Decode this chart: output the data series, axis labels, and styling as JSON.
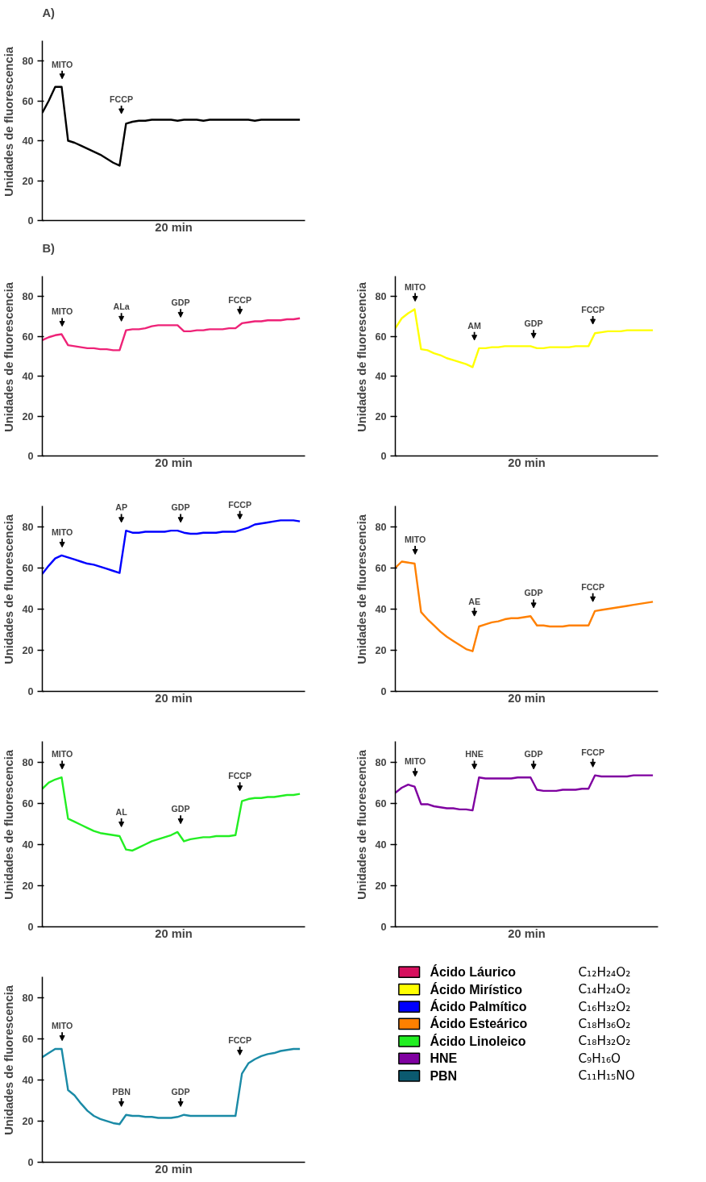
{
  "chart_data": [
    {
      "type": "line",
      "title": "A)",
      "ylabel": "Unidades de fluorescencia",
      "xlabel": "20 min",
      "ylim": [
        0,
        90
      ],
      "yticks": [
        0,
        20,
        40,
        60,
        80
      ],
      "grid": false,
      "categories": [
        null,
        null,
        null,
        null,
        null,
        null,
        null,
        null,
        null,
        null,
        null,
        null,
        null,
        null,
        null,
        null,
        null,
        null,
        null,
        null,
        null,
        null,
        null,
        null,
        null,
        null,
        null,
        null,
        null,
        null,
        null,
        null,
        null,
        null,
        null,
        null,
        null,
        null,
        null,
        null,
        null
      ],
      "series": [
        {
          "color": "#000000",
          "values": [
            54,
            60,
            67,
            67,
            40,
            39,
            37.5,
            36,
            34.5,
            33,
            31,
            29,
            27.5,
            48.5,
            49.5,
            50,
            50,
            50.5,
            50.5,
            50.5,
            50.5,
            50,
            50.5,
            50.5,
            50.5,
            50,
            50.5,
            50.5,
            50.5,
            50.5,
            50.5,
            50.5,
            50.5,
            50,
            50.5,
            50.5,
            50.5,
            50.5,
            50.5,
            50.5,
            50.5
          ]
        }
      ],
      "annotations": [
        "MITO",
        "FCCP"
      ]
    },
    {
      "type": "line",
      "title": "B)",
      "ylabel": "Unidades de fluorescencia",
      "xlabel": "20 min",
      "ylim": [
        0,
        90
      ],
      "yticks": [
        0,
        20,
        40,
        60,
        80
      ],
      "grid": false,
      "categories": [
        null,
        null,
        null,
        null,
        null,
        null,
        null,
        null,
        null,
        null,
        null,
        null,
        null,
        null,
        null,
        null,
        null,
        null,
        null,
        null,
        null,
        null,
        null,
        null,
        null,
        null,
        null,
        null,
        null,
        null,
        null,
        null,
        null,
        null,
        null,
        null,
        null,
        null,
        null,
        null,
        null
      ],
      "series": [
        {
          "color": "#ee2277",
          "values": [
            58,
            59.5,
            60.5,
            61,
            55.5,
            55,
            54.5,
            54,
            54,
            53.5,
            53.5,
            53,
            53,
            63,
            63.5,
            63.5,
            64,
            65,
            65.5,
            65.5,
            65.5,
            65.5,
            62.5,
            62.5,
            63,
            63,
            63.5,
            63.5,
            63.5,
            64,
            64,
            66.5,
            67,
            67.5,
            67.5,
            68,
            68,
            68,
            68.5,
            68.5,
            69
          ]
        }
      ],
      "annotations": [
        "MITO",
        "ALa",
        "GDP",
        "FCCP"
      ]
    },
    {
      "type": "line",
      "ylabel": "Unidades de fluorescencia",
      "xlabel": "20 min",
      "ylim": [
        0,
        90
      ],
      "yticks": [
        0,
        20,
        40,
        60,
        80
      ],
      "grid": false,
      "categories": [
        null,
        null,
        null,
        null,
        null,
        null,
        null,
        null,
        null,
        null,
        null,
        null,
        null,
        null,
        null,
        null,
        null,
        null,
        null,
        null,
        null,
        null,
        null,
        null,
        null,
        null,
        null,
        null,
        null,
        null,
        null,
        null,
        null,
        null,
        null,
        null,
        null,
        null,
        null,
        null,
        null
      ],
      "series": [
        {
          "color": "#ffff00",
          "values": [
            64,
            69,
            71.5,
            73.5,
            53.5,
            53,
            51.5,
            50.5,
            49,
            48,
            47,
            46,
            44.5,
            54,
            54,
            54.5,
            54.5,
            55,
            55,
            55,
            55,
            55,
            54,
            54,
            54.5,
            54.5,
            54.5,
            54.5,
            55,
            55,
            55,
            61.5,
            62,
            62.5,
            62.5,
            62.5,
            63,
            63,
            63,
            63,
            63
          ]
        }
      ],
      "annotations": [
        "MITO",
        "AM",
        "GDP",
        "FCCP"
      ]
    },
    {
      "type": "line",
      "ylabel": "Unidades de fluorescencia",
      "xlabel": "20 min",
      "ylim": [
        0,
        90
      ],
      "yticks": [
        0,
        20,
        40,
        60,
        80
      ],
      "grid": false,
      "categories": [
        null,
        null,
        null,
        null,
        null,
        null,
        null,
        null,
        null,
        null,
        null,
        null,
        null,
        null,
        null,
        null,
        null,
        null,
        null,
        null,
        null,
        null,
        null,
        null,
        null,
        null,
        null,
        null,
        null,
        null,
        null,
        null,
        null,
        null,
        null,
        null,
        null,
        null,
        null,
        null,
        null
      ],
      "series": [
        {
          "color": "#0000ff",
          "values": [
            57,
            61,
            64.5,
            66,
            65,
            64,
            63,
            62,
            61.5,
            60.5,
            59.5,
            58.5,
            57.5,
            78,
            77,
            77,
            77.5,
            77.5,
            77.5,
            77.5,
            78,
            78,
            77,
            76.5,
            76.5,
            77,
            77,
            77,
            77.5,
            77.5,
            77.5,
            78.5,
            79.5,
            81,
            81.5,
            82,
            82.5,
            83,
            83,
            83,
            82.5
          ]
        }
      ],
      "annotations": [
        "MITO",
        "AP",
        "GDP",
        "FCCP"
      ]
    },
    {
      "type": "line",
      "ylabel": "Unidades de fluorescencia",
      "xlabel": "20 min",
      "ylim": [
        0,
        90
      ],
      "yticks": [
        0,
        20,
        40,
        60,
        80
      ],
      "grid": false,
      "categories": [
        null,
        null,
        null,
        null,
        null,
        null,
        null,
        null,
        null,
        null,
        null,
        null,
        null,
        null,
        null,
        null,
        null,
        null,
        null,
        null,
        null,
        null,
        null,
        null,
        null,
        null,
        null,
        null,
        null,
        null,
        null,
        null,
        null,
        null,
        null,
        null,
        null,
        null,
        null,
        null,
        null
      ],
      "series": [
        {
          "color": "#ff8000",
          "values": [
            60,
            63,
            62.5,
            62,
            38.5,
            35,
            32,
            29,
            26.5,
            24.5,
            22.5,
            20.5,
            19.5,
            31.5,
            32.5,
            33.5,
            34,
            35,
            35.5,
            35.5,
            36,
            36.5,
            32,
            32,
            31.5,
            31.5,
            31.5,
            32,
            32,
            32,
            32,
            39,
            39.5,
            40,
            40.5,
            41,
            41.5,
            42,
            42.5,
            43,
            43.5
          ]
        }
      ],
      "annotations": [
        "MITO",
        "AE",
        "GDP",
        "FCCP"
      ]
    },
    {
      "type": "line",
      "ylabel": "Unidades de fluorescencia",
      "xlabel": "20 min",
      "ylim": [
        0,
        90
      ],
      "yticks": [
        0,
        20,
        40,
        60,
        80
      ],
      "grid": false,
      "categories": [
        null,
        null,
        null,
        null,
        null,
        null,
        null,
        null,
        null,
        null,
        null,
        null,
        null,
        null,
        null,
        null,
        null,
        null,
        null,
        null,
        null,
        null,
        null,
        null,
        null,
        null,
        null,
        null,
        null,
        null,
        null,
        null,
        null,
        null,
        null,
        null,
        null,
        null,
        null,
        null,
        null
      ],
      "series": [
        {
          "color": "#22ee22",
          "values": [
            67,
            70,
            71.5,
            72.5,
            52.5,
            51,
            49.5,
            48,
            46.5,
            45.5,
            45,
            44.5,
            44,
            37.5,
            37,
            38.5,
            40,
            41.5,
            42.5,
            43.5,
            44.5,
            46,
            41.5,
            42.5,
            43,
            43.5,
            43.5,
            44,
            44,
            44,
            44.5,
            61,
            62,
            62.5,
            62.5,
            63,
            63,
            63.5,
            64,
            64,
            64.5
          ]
        }
      ],
      "annotations": [
        "MITO",
        "AL",
        "GDP",
        "FCCP"
      ]
    },
    {
      "type": "line",
      "ylabel": "Unidades de fluorescencia",
      "xlabel": "20 min",
      "ylim": [
        0,
        90
      ],
      "yticks": [
        0,
        20,
        40,
        60,
        80
      ],
      "grid": false,
      "categories": [
        null,
        null,
        null,
        null,
        null,
        null,
        null,
        null,
        null,
        null,
        null,
        null,
        null,
        null,
        null,
        null,
        null,
        null,
        null,
        null,
        null,
        null,
        null,
        null,
        null,
        null,
        null,
        null,
        null,
        null,
        null,
        null,
        null,
        null,
        null,
        null,
        null,
        null,
        null,
        null,
        null
      ],
      "series": [
        {
          "color": "#7f00a0",
          "values": [
            65,
            67.5,
            69,
            68,
            59.5,
            59.5,
            58.5,
            58,
            57.5,
            57.5,
            57,
            57,
            56.5,
            72.5,
            72,
            72,
            72,
            72,
            72,
            72.5,
            72.5,
            72.5,
            66.5,
            66,
            66,
            66,
            66.5,
            66.5,
            66.5,
            67,
            67,
            73.5,
            73,
            73,
            73,
            73,
            73,
            73.5,
            73.5,
            73.5,
            73.5
          ]
        }
      ],
      "annotations": [
        "MITO",
        "HNE",
        "GDP",
        "FCCP"
      ]
    },
    {
      "type": "line",
      "ylabel": "Unidades de fluorescencia",
      "xlabel": "20 min",
      "ylim": [
        0,
        90
      ],
      "yticks": [
        0,
        20,
        40,
        60,
        80
      ],
      "grid": false,
      "categories": [
        null,
        null,
        null,
        null,
        null,
        null,
        null,
        null,
        null,
        null,
        null,
        null,
        null,
        null,
        null,
        null,
        null,
        null,
        null,
        null,
        null,
        null,
        null,
        null,
        null,
        null,
        null,
        null,
        null,
        null,
        null,
        null,
        null,
        null,
        null,
        null,
        null,
        null,
        null,
        null,
        null
      ],
      "series": [
        {
          "color": "#1a8aa6",
          "values": [
            51,
            53,
            55,
            55,
            35,
            32.5,
            28.5,
            25,
            22.5,
            21,
            20,
            19,
            18.5,
            23,
            22.5,
            22.5,
            22,
            22,
            21.5,
            21.5,
            21.5,
            22,
            23,
            22.5,
            22.5,
            22.5,
            22.5,
            22.5,
            22.5,
            22.5,
            22.5,
            43,
            48,
            50,
            51.5,
            52.5,
            53,
            54,
            54.5,
            55,
            55
          ]
        }
      ],
      "annotations": [
        "MITO",
        "PBN",
        "GDP",
        "FCCP"
      ]
    },
    {
      "type": "other",
      "categories": [
        "Ácido Láurico",
        "Ácido Mirístico",
        "Ácido Palmítico",
        "Ácido Esteárico",
        "Ácido Linoleico",
        "HNE",
        "PBN"
      ],
      "colors": [
        "#d6105e",
        "#ffff00",
        "#0000ff",
        "#ff8000",
        "#22ee22",
        "#7f00a0",
        "#0b5a70"
      ],
      "annotations": [
        "C₁₂H₂₄O₂",
        "C₁₄H₂₄O₂",
        "C₁₆H₃₂O₂",
        "C₁₈H₃₆O₂",
        "C₁₈H₃₂O₂",
        "C₉H₁₆O",
        "C₁₁H₁₅NO"
      ]
    }
  ]
}
